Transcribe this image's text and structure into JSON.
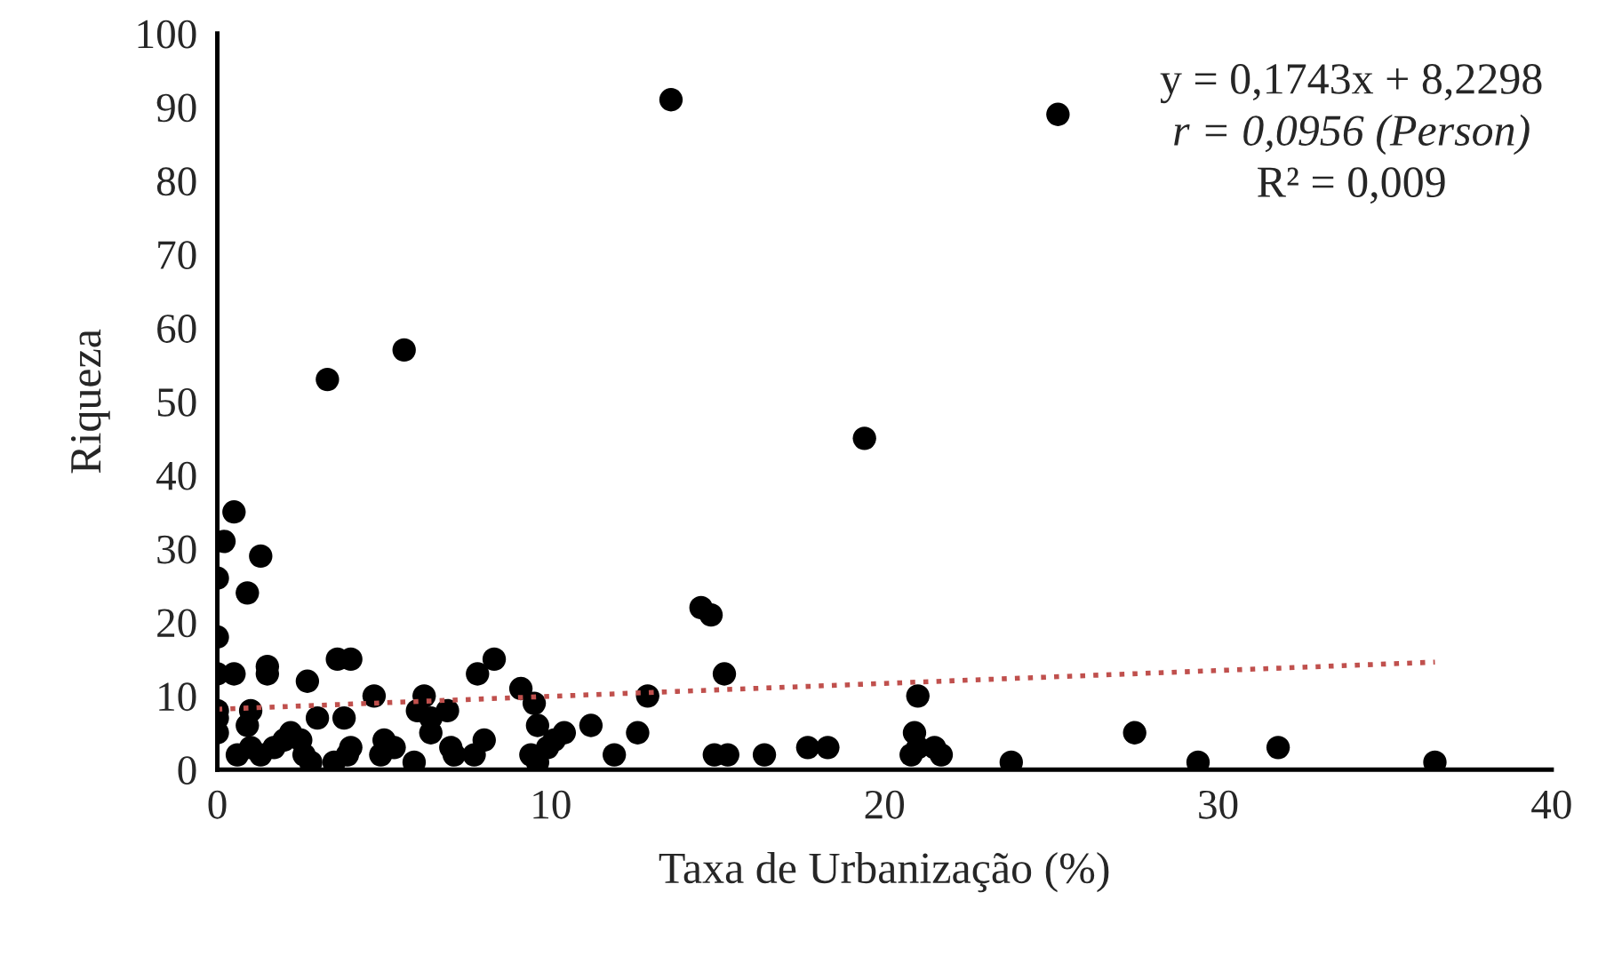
{
  "chart_data": {
    "type": "scatter",
    "xlabel": "Taxa de Urbanização (%)",
    "ylabel": "Riqueza",
    "xlim": [
      0,
      40
    ],
    "xticks": [
      0,
      10,
      20,
      30,
      40
    ],
    "ylim": [
      0,
      100
    ],
    "yticks": [
      0,
      10,
      20,
      30,
      40,
      50,
      60,
      70,
      80,
      90,
      100
    ],
    "grid": false,
    "marker": "circle",
    "series": [
      {
        "color": "#000000",
        "x": [
          13.6,
          25.2,
          5.6,
          3.3,
          19.4,
          0.5,
          0.2,
          1.3,
          0,
          0.9,
          14.5,
          14.8,
          0,
          0,
          0.5,
          1.5,
          1.5,
          3.6,
          4.0,
          8.3,
          7.8,
          15.2,
          2.7,
          9.1,
          4.7,
          6.2,
          12.9,
          21.0,
          0,
          0,
          1.0,
          0.9,
          3.0,
          3.8,
          6.0,
          6.9,
          6.4,
          9.5,
          9.6,
          10.4,
          11.2,
          12.6,
          20.9,
          27.5,
          0,
          0.6,
          1.0,
          1.3,
          1.7,
          2.0,
          2.2,
          2.5,
          2.6,
          2.8,
          3.5,
          3.9,
          4.0,
          4.9,
          5.0,
          5.3,
          5.9,
          6.4,
          7.0,
          7.1,
          7.7,
          8.0,
          9.4,
          9.6,
          9.9,
          10.1,
          11.9,
          14.9,
          15.3,
          16.4,
          17.7,
          18.3,
          20.8,
          21.0,
          21.5,
          21.7,
          23.8,
          29.4,
          31.8,
          36.5
        ],
        "values": [
          91,
          89,
          57,
          53,
          45,
          35,
          31,
          29,
          26,
          24,
          22,
          21,
          18,
          13,
          13,
          14,
          13,
          15,
          15,
          15,
          13,
          13,
          12,
          11,
          10,
          10,
          10,
          10,
          8,
          7,
          8,
          6,
          7,
          7,
          8,
          8,
          7,
          9,
          6,
          5,
          6,
          5,
          5,
          5,
          5,
          2,
          3,
          2,
          3,
          4,
          5,
          4,
          2,
          1,
          1,
          2,
          3,
          2,
          4,
          3,
          1,
          5,
          3,
          2,
          2,
          4,
          2,
          1,
          3,
          4,
          2,
          2,
          2,
          2,
          3,
          3,
          2,
          3,
          3,
          2,
          1,
          1,
          3,
          1
        ]
      },
      {
        "type": "line",
        "color": "#c0504d",
        "line_style": "dotted",
        "marker": "none",
        "x": [
          0,
          36.5
        ],
        "values": [
          8.2,
          14.6
        ]
      }
    ],
    "annotations": [
      "y = 0,1743x + 8,2298",
      "r = 0,0956 (Person)",
      "R² = 0,009"
    ]
  }
}
